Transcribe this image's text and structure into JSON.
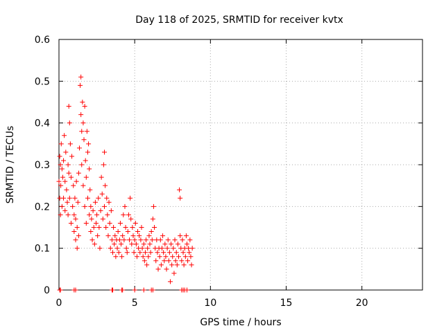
{
  "chart_data": {
    "type": "scatter",
    "title": "Day 118 of 2025, SRMTID for receiver kvtx",
    "xlabel": "GPS time / hours",
    "ylabel": "SRMTID / TECUs",
    "xlim": [
      0,
      24
    ],
    "ylim": [
      0,
      0.6
    ],
    "xticks": [
      0,
      5,
      10,
      15,
      20
    ],
    "yticks": [
      0,
      0.1,
      0.2,
      0.3,
      0.4,
      0.5,
      0.6
    ],
    "xtick_labels": [
      "0",
      "5",
      "10",
      "15",
      "20"
    ],
    "ytick_labels": [
      "0",
      "0.1",
      "0.2",
      "0.3",
      "0.4",
      "0.5",
      "0.6"
    ],
    "grid": true,
    "marker": "plus",
    "series": [
      {
        "name": "kvtx",
        "color": "#ff0000",
        "points": [
          [
            0.0,
            0.26
          ],
          [
            0.05,
            0.32
          ],
          [
            0.05,
            0.22
          ],
          [
            0.1,
            0.3
          ],
          [
            0.1,
            0.18
          ],
          [
            0.12,
            0.25
          ],
          [
            0.15,
            0.35
          ],
          [
            0.2,
            0.29
          ],
          [
            0.2,
            0.2
          ],
          [
            0.25,
            0.27
          ],
          [
            0.3,
            0.31
          ],
          [
            0.3,
            0.22
          ],
          [
            0.35,
            0.37
          ],
          [
            0.4,
            0.26
          ],
          [
            0.4,
            0.19
          ],
          [
            0.45,
            0.33
          ],
          [
            0.5,
            0.24
          ],
          [
            0.55,
            0.21
          ],
          [
            0.6,
            0.3
          ],
          [
            0.6,
            0.18
          ],
          [
            0.65,
            0.44
          ],
          [
            0.65,
            0.28
          ],
          [
            0.7,
            0.22
          ],
          [
            0.7,
            0.4
          ],
          [
            0.75,
            0.35
          ],
          [
            0.8,
            0.27
          ],
          [
            0.8,
            0.16
          ],
          [
            0.85,
            0.32
          ],
          [
            0.9,
            0.2
          ],
          [
            0.95,
            0.25
          ],
          [
            1.0,
            0.18
          ],
          [
            1.0,
            0.14
          ],
          [
            1.05,
            0.22
          ],
          [
            1.1,
            0.12
          ],
          [
            1.1,
            0.17
          ],
          [
            1.15,
            0.26
          ],
          [
            1.2,
            0.15
          ],
          [
            1.2,
            0.1
          ],
          [
            1.25,
            0.21
          ],
          [
            1.3,
            0.28
          ],
          [
            1.3,
            0.13
          ],
          [
            1.35,
            0.34
          ],
          [
            1.4,
            0.49
          ],
          [
            1.45,
            0.51
          ],
          [
            1.45,
            0.42
          ],
          [
            1.5,
            0.38
          ],
          [
            1.5,
            0.3
          ],
          [
            1.55,
            0.45
          ],
          [
            1.6,
            0.4
          ],
          [
            1.6,
            0.25
          ],
          [
            1.65,
            0.36
          ],
          [
            1.7,
            0.44
          ],
          [
            1.7,
            0.2
          ],
          [
            1.75,
            0.31
          ],
          [
            1.8,
            0.27
          ],
          [
            1.8,
            0.16
          ],
          [
            1.85,
            0.38
          ],
          [
            1.9,
            0.33
          ],
          [
            1.9,
            0.22
          ],
          [
            1.95,
            0.35
          ],
          [
            2.0,
            0.29
          ],
          [
            2.0,
            0.18
          ],
          [
            2.05,
            0.24
          ],
          [
            2.1,
            0.2
          ],
          [
            2.1,
            0.14
          ],
          [
            2.15,
            0.17
          ],
          [
            2.2,
            0.12
          ],
          [
            2.25,
            0.19
          ],
          [
            2.3,
            0.15
          ],
          [
            2.35,
            0.11
          ],
          [
            2.4,
            0.21
          ],
          [
            2.45,
            0.16
          ],
          [
            2.5,
            0.18
          ],
          [
            2.55,
            0.13
          ],
          [
            2.6,
            0.22
          ],
          [
            2.65,
            0.15
          ],
          [
            2.7,
            0.1
          ],
          [
            2.75,
            0.19
          ],
          [
            2.8,
            0.27
          ],
          [
            2.85,
            0.23
          ],
          [
            2.9,
            0.17
          ],
          [
            2.95,
            0.3
          ],
          [
            3.0,
            0.33
          ],
          [
            3.0,
            0.2
          ],
          [
            3.05,
            0.25
          ],
          [
            3.1,
            0.15
          ],
          [
            3.15,
            0.22
          ],
          [
            3.2,
            0.18
          ],
          [
            3.25,
            0.13
          ],
          [
            3.3,
            0.21
          ],
          [
            3.35,
            0.16
          ],
          [
            3.4,
            0.1
          ],
          [
            3.45,
            0.19
          ],
          [
            3.5,
            0.12
          ],
          [
            3.55,
            0.09
          ],
          [
            3.6,
            0.15
          ],
          [
            3.65,
            0.11
          ],
          [
            3.7,
            0.13
          ],
          [
            3.75,
            0.08
          ],
          [
            3.8,
            0.12
          ],
          [
            3.85,
            0.1
          ],
          [
            3.9,
            0.14
          ],
          [
            3.95,
            0.09
          ],
          [
            4.0,
            0.12
          ],
          [
            4.05,
            0.16
          ],
          [
            4.1,
            0.11
          ],
          [
            4.15,
            0.08
          ],
          [
            4.2,
            0.13
          ],
          [
            4.25,
            0.18
          ],
          [
            4.3,
            0.12
          ],
          [
            4.35,
            0.2
          ],
          [
            4.4,
            0.15
          ],
          [
            4.45,
            0.1
          ],
          [
            4.5,
            0.09
          ],
          [
            4.55,
            0.14
          ],
          [
            4.6,
            0.18
          ],
          [
            4.65,
            0.12
          ],
          [
            4.7,
            0.22
          ],
          [
            4.75,
            0.17
          ],
          [
            4.8,
            0.11
          ],
          [
            4.85,
            0.15
          ],
          [
            4.9,
            0.13
          ],
          [
            4.95,
            0.09
          ],
          [
            5.0,
            0.12
          ],
          [
            5.05,
            0.16
          ],
          [
            5.1,
            0.11
          ],
          [
            5.15,
            0.08
          ],
          [
            5.2,
            0.14
          ],
          [
            5.25,
            0.1
          ],
          [
            5.3,
            0.13
          ],
          [
            5.35,
            0.09
          ],
          [
            5.4,
            0.12
          ],
          [
            5.45,
            0.15
          ],
          [
            5.5,
            0.1
          ],
          [
            5.55,
            0.08
          ],
          [
            5.6,
            0.11
          ],
          [
            5.65,
            0.07
          ],
          [
            5.7,
            0.09
          ],
          [
            5.75,
            0.12
          ],
          [
            5.8,
            0.06
          ],
          [
            5.85,
            0.1
          ],
          [
            5.9,
            0.08
          ],
          [
            5.95,
            0.13
          ],
          [
            6.0,
            0.11
          ],
          [
            6.05,
            0.09
          ],
          [
            6.1,
            0.14
          ],
          [
            6.15,
            0.12
          ],
          [
            6.2,
            0.17
          ],
          [
            6.25,
            0.2
          ],
          [
            6.3,
            0.15
          ],
          [
            6.35,
            0.1
          ],
          [
            6.4,
            0.07
          ],
          [
            6.45,
            0.12
          ],
          [
            6.5,
            0.09
          ],
          [
            6.55,
            0.05
          ],
          [
            6.6,
            0.1
          ],
          [
            6.65,
            0.08
          ],
          [
            6.7,
            0.12
          ],
          [
            6.75,
            0.06
          ],
          [
            6.8,
            0.1
          ],
          [
            6.85,
            0.13
          ],
          [
            6.9,
            0.09
          ],
          [
            6.95,
            0.07
          ],
          [
            7.0,
            0.11
          ],
          [
            7.05,
            0.08
          ],
          [
            7.1,
            0.05
          ],
          [
            7.15,
            0.1
          ],
          [
            7.2,
            0.12
          ],
          [
            7.25,
            0.07
          ],
          [
            7.3,
            0.09
          ],
          [
            7.35,
            0.02
          ],
          [
            7.4,
            0.11
          ],
          [
            7.45,
            0.06
          ],
          [
            7.5,
            0.08
          ],
          [
            7.55,
            0.1
          ],
          [
            7.6,
            0.04
          ],
          [
            7.65,
            0.12
          ],
          [
            7.7,
            0.07
          ],
          [
            7.75,
            0.09
          ],
          [
            7.8,
            0.06
          ],
          [
            7.85,
            0.11
          ],
          [
            7.9,
            0.08
          ],
          [
            7.95,
            0.24
          ],
          [
            8.0,
            0.22
          ],
          [
            8.0,
            0.13
          ],
          [
            8.05,
            0.1
          ],
          [
            8.1,
            0.07
          ],
          [
            8.15,
            0.12
          ],
          [
            8.2,
            0.09
          ],
          [
            8.25,
            0.06
          ],
          [
            8.3,
            0.1
          ],
          [
            8.35,
            0.08
          ],
          [
            8.4,
            0.13
          ],
          [
            8.45,
            0.11
          ],
          [
            8.5,
            0.07
          ],
          [
            8.55,
            0.1
          ],
          [
            8.6,
            0.09
          ],
          [
            8.65,
            0.12
          ],
          [
            8.7,
            0.08
          ],
          [
            8.75,
            0.06
          ],
          [
            8.8,
            0.1
          ],
          [
            0.05,
            0.0
          ],
          [
            0.1,
            0.0
          ],
          [
            1.0,
            0.0
          ],
          [
            1.1,
            0.0
          ],
          [
            3.5,
            0.0
          ],
          [
            3.55,
            0.0
          ],
          [
            4.15,
            0.0
          ],
          [
            4.2,
            0.0
          ],
          [
            5.0,
            0.0
          ],
          [
            5.6,
            0.0
          ],
          [
            6.1,
            0.0
          ],
          [
            6.2,
            0.0
          ],
          [
            8.1,
            0.0
          ],
          [
            8.2,
            0.0
          ],
          [
            8.3,
            0.0
          ],
          [
            8.45,
            0.0
          ]
        ]
      }
    ]
  }
}
